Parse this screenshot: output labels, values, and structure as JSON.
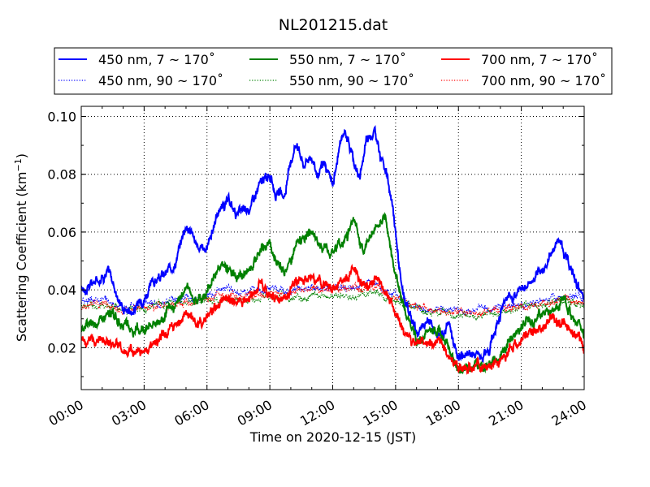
{
  "chart_data": {
    "type": "line",
    "title": "NL201215.dat",
    "xlabel": "Time on 2020-12-15 (JST)",
    "ylabel_main": "Scattering Coefficient (km",
    "ylabel_sup": "−1",
    "ylabel_end": ")",
    "xlim": [
      0,
      24
    ],
    "ylim": [
      0.0055,
      0.1035
    ],
    "grid": true,
    "legend_position": "top",
    "x_ticks": [
      {
        "value": 0,
        "label": "00:00"
      },
      {
        "value": 3,
        "label": "03:00"
      },
      {
        "value": 6,
        "label": "06:00"
      },
      {
        "value": 9,
        "label": "09:00"
      },
      {
        "value": 12,
        "label": "12:00"
      },
      {
        "value": 15,
        "label": "15:00"
      },
      {
        "value": 18,
        "label": "18:00"
      },
      {
        "value": 21,
        "label": "21:00"
      },
      {
        "value": 24,
        "label": "24:00"
      }
    ],
    "y_ticks": [
      {
        "value": 0.02,
        "label": "0.02"
      },
      {
        "value": 0.04,
        "label": "0.04"
      },
      {
        "value": 0.06,
        "label": "0.06"
      },
      {
        "value": 0.08,
        "label": "0.08"
      },
      {
        "value": 0.1,
        "label": "0.10"
      }
    ],
    "series": [
      {
        "name": "450 nm, 7 ~ 170˚",
        "color": "#0000ff",
        "style": "solid",
        "x": [
          0,
          0.5,
          1,
          1.3,
          1.6,
          2,
          2.5,
          3,
          3.5,
          4,
          4.5,
          5,
          5.3,
          5.6,
          6,
          6.3,
          6.6,
          7,
          7.5,
          8,
          8.5,
          9,
          9.3,
          9.7,
          10,
          10.3,
          10.6,
          11,
          11.3,
          11.6,
          12,
          12.3,
          12.6,
          13,
          13.3,
          13.6,
          14,
          14.3,
          14.6,
          15,
          15.3,
          15.6,
          16,
          16.5,
          17,
          17.5,
          18,
          18.5,
          19,
          19.5,
          20,
          20.5,
          21,
          21.5,
          22,
          22.5,
          22.8,
          23.2,
          23.6,
          24
        ],
        "y": [
          0.04,
          0.042,
          0.045,
          0.047,
          0.04,
          0.034,
          0.033,
          0.038,
          0.043,
          0.045,
          0.05,
          0.063,
          0.06,
          0.053,
          0.055,
          0.062,
          0.068,
          0.07,
          0.066,
          0.068,
          0.076,
          0.08,
          0.073,
          0.072,
          0.085,
          0.092,
          0.083,
          0.087,
          0.079,
          0.083,
          0.076,
          0.088,
          0.096,
          0.085,
          0.078,
          0.093,
          0.095,
          0.086,
          0.08,
          0.06,
          0.04,
          0.032,
          0.024,
          0.03,
          0.025,
          0.028,
          0.017,
          0.018,
          0.018,
          0.02,
          0.033,
          0.038,
          0.04,
          0.043,
          0.046,
          0.054,
          0.058,
          0.05,
          0.043,
          0.035
        ]
      },
      {
        "name": "450 nm, 90 ~ 170˚",
        "color": "#0000ff",
        "style": "dotted",
        "x": [
          0,
          1,
          2,
          3,
          4,
          5,
          6,
          7,
          8,
          9,
          10,
          11,
          12,
          13,
          14,
          15,
          16,
          17,
          18,
          19,
          20,
          21,
          22,
          23,
          24
        ],
        "y": [
          0.036,
          0.037,
          0.034,
          0.035,
          0.036,
          0.037,
          0.038,
          0.04,
          0.039,
          0.04,
          0.039,
          0.041,
          0.04,
          0.041,
          0.042,
          0.038,
          0.034,
          0.033,
          0.033,
          0.033,
          0.034,
          0.035,
          0.036,
          0.038,
          0.036
        ]
      },
      {
        "name": "550 nm, 7 ~ 170˚",
        "color": "#008000",
        "style": "solid",
        "x": [
          0,
          0.5,
          1,
          1.5,
          2,
          2.5,
          3,
          3.5,
          4,
          4.5,
          5,
          5.5,
          6,
          6.3,
          6.6,
          7,
          7.5,
          8,
          8.5,
          9,
          9.3,
          9.7,
          10,
          10.5,
          11,
          11.5,
          12,
          12.5,
          13,
          13.5,
          14,
          14.5,
          15,
          15.5,
          16,
          16.5,
          17,
          17.5,
          18,
          18.5,
          19,
          19.5,
          20,
          20.5,
          21,
          21.5,
          22,
          22.5,
          23,
          23.5,
          24
        ],
        "y": [
          0.026,
          0.028,
          0.03,
          0.032,
          0.027,
          0.025,
          0.028,
          0.029,
          0.031,
          0.034,
          0.041,
          0.037,
          0.039,
          0.045,
          0.049,
          0.047,
          0.044,
          0.046,
          0.052,
          0.057,
          0.05,
          0.046,
          0.052,
          0.058,
          0.061,
          0.054,
          0.054,
          0.056,
          0.064,
          0.054,
          0.062,
          0.064,
          0.046,
          0.032,
          0.022,
          0.024,
          0.026,
          0.02,
          0.013,
          0.013,
          0.014,
          0.014,
          0.018,
          0.022,
          0.028,
          0.029,
          0.032,
          0.033,
          0.037,
          0.03,
          0.024
        ]
      },
      {
        "name": "550 nm, 90 ~ 170˚",
        "color": "#008000",
        "style": "dotted",
        "x": [
          0,
          1,
          2,
          3,
          4,
          5,
          6,
          7,
          8,
          9,
          10,
          11,
          12,
          13,
          14,
          15,
          16,
          17,
          18,
          19,
          20,
          21,
          22,
          23,
          24
        ],
        "y": [
          0.034,
          0.035,
          0.033,
          0.034,
          0.035,
          0.036,
          0.036,
          0.037,
          0.037,
          0.038,
          0.037,
          0.038,
          0.038,
          0.038,
          0.039,
          0.036,
          0.033,
          0.032,
          0.031,
          0.031,
          0.032,
          0.034,
          0.035,
          0.036,
          0.034
        ]
      },
      {
        "name": "700 nm, 7 ~ 170˚",
        "color": "#ff0000",
        "style": "solid",
        "x": [
          0,
          0.5,
          1,
          1.5,
          2,
          2.5,
          3,
          3.5,
          4,
          4.5,
          5,
          5.5,
          6,
          6.5,
          7,
          7.5,
          8,
          8.5,
          9,
          9.5,
          10,
          10.5,
          11,
          11.5,
          12,
          12.5,
          13,
          13.5,
          14,
          14.5,
          15,
          15.5,
          16,
          16.5,
          17,
          17.5,
          18,
          18.5,
          19,
          19.5,
          20,
          20.5,
          21,
          21.5,
          22,
          22.5,
          23,
          23.5,
          24
        ],
        "y": [
          0.022,
          0.023,
          0.023,
          0.022,
          0.019,
          0.018,
          0.02,
          0.022,
          0.025,
          0.028,
          0.032,
          0.028,
          0.03,
          0.035,
          0.037,
          0.034,
          0.036,
          0.042,
          0.039,
          0.036,
          0.041,
          0.044,
          0.044,
          0.042,
          0.042,
          0.044,
          0.047,
          0.042,
          0.044,
          0.041,
          0.032,
          0.023,
          0.02,
          0.022,
          0.023,
          0.018,
          0.013,
          0.013,
          0.014,
          0.014,
          0.016,
          0.02,
          0.023,
          0.025,
          0.026,
          0.03,
          0.028,
          0.024,
          0.02
        ]
      },
      {
        "name": "700 nm, 90 ~ 170˚",
        "color": "#ff0000",
        "style": "dotted",
        "x": [
          0,
          1,
          2,
          3,
          4,
          5,
          6,
          7,
          8,
          9,
          10,
          11,
          12,
          13,
          14,
          15,
          16,
          17,
          18,
          19,
          20,
          21,
          22,
          23,
          24
        ],
        "y": [
          0.034,
          0.035,
          0.033,
          0.034,
          0.035,
          0.036,
          0.037,
          0.038,
          0.038,
          0.039,
          0.039,
          0.04,
          0.04,
          0.04,
          0.041,
          0.037,
          0.034,
          0.033,
          0.032,
          0.032,
          0.033,
          0.034,
          0.035,
          0.037,
          0.035
        ]
      }
    ]
  }
}
